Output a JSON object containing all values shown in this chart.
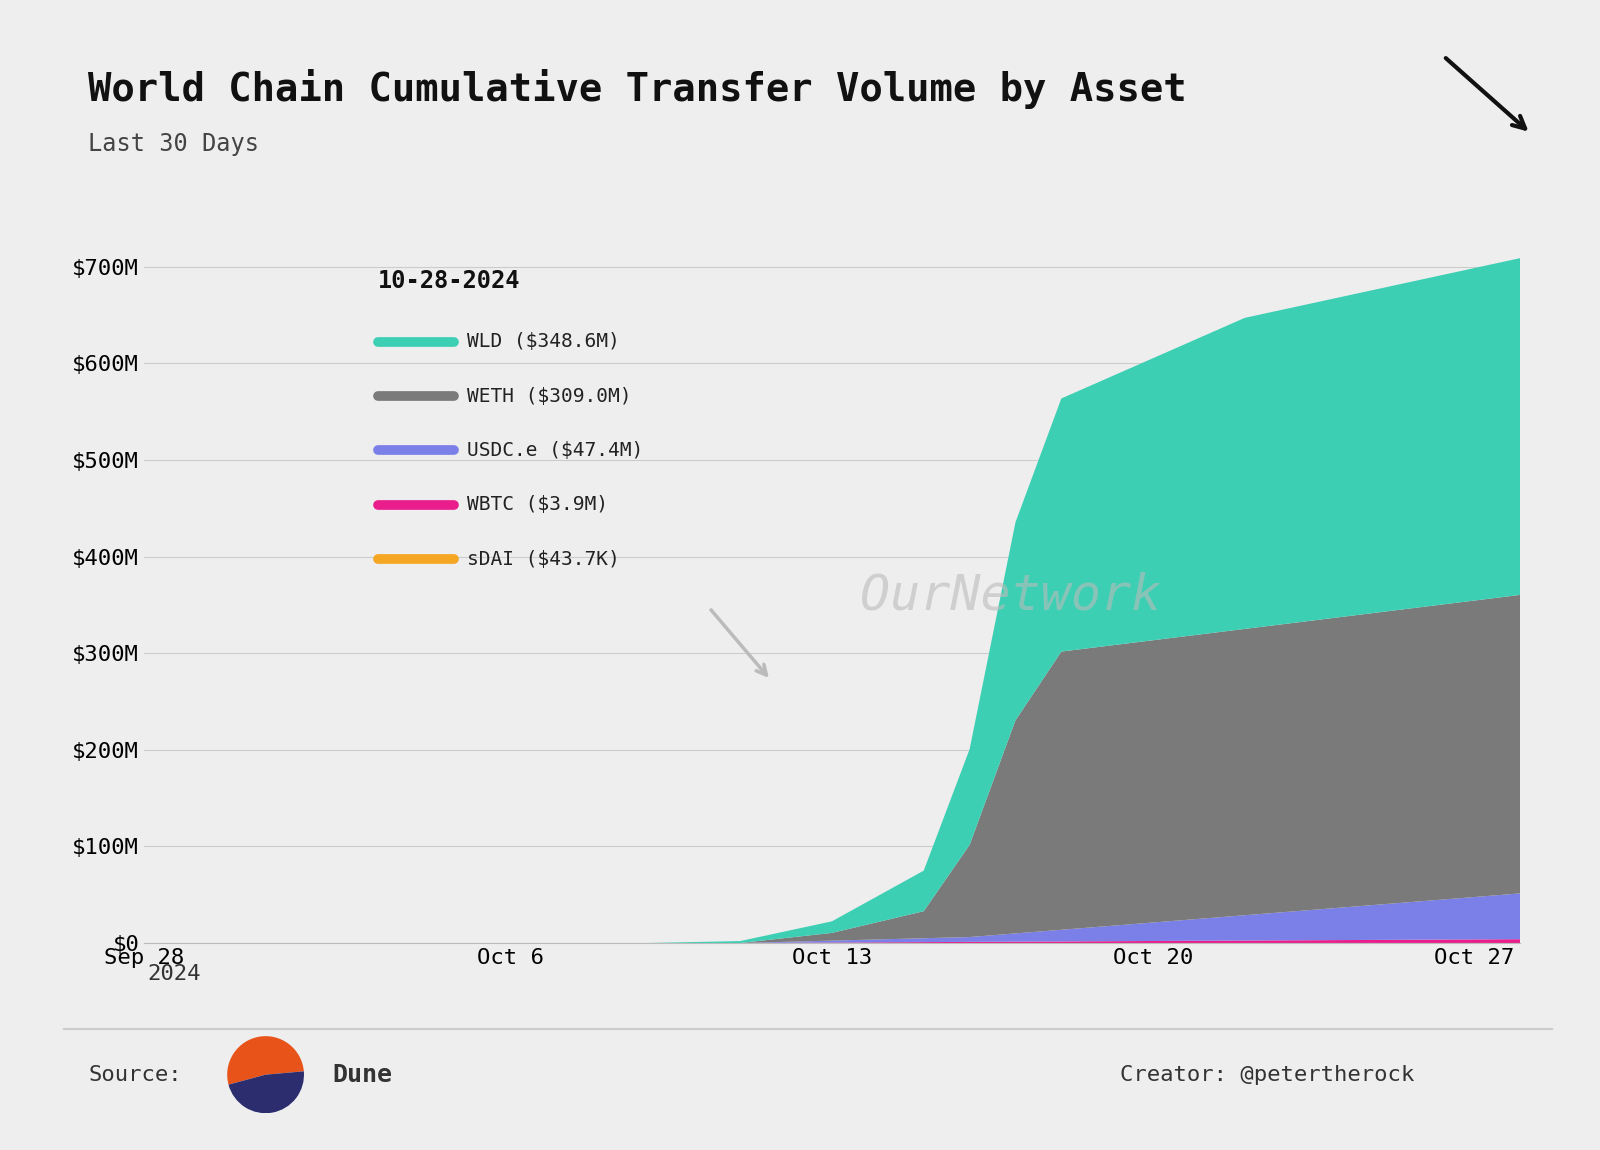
{
  "title": "World Chain Cumulative Transfer Volume by Asset",
  "subtitle": "Last 30 Days",
  "annotation": "10-28-2024",
  "background_color": "#eeeeee",
  "plot_bg_color": "#eeeeee",
  "series_order": [
    "sDAI",
    "WBTC",
    "USDC.e",
    "WETH",
    "WLD"
  ],
  "series": {
    "sDAI": {
      "color": "#f5a623",
      "final_value": 43700
    },
    "WBTC": {
      "color": "#e91e8c",
      "final_value": 3900000
    },
    "USDC.e": {
      "color": "#7b7fe8",
      "final_value": 47400000
    },
    "WETH": {
      "color": "#7a7a7a",
      "final_value": 309000000
    },
    "WLD": {
      "color": "#3dcfb4",
      "final_value": 348600000
    }
  },
  "legend_entries": [
    {
      "label": "WLD ($348.6M)",
      "color": "#3dcfb4"
    },
    {
      "label": "WETH ($309.0M)",
      "color": "#7a7a7a"
    },
    {
      "label": "USDC.e ($47.4M)",
      "color": "#7b7fe8"
    },
    {
      "label": "WBTC ($3.9M)",
      "color": "#e91e8c"
    },
    {
      "label": "sDAI ($43.7K)",
      "color": "#f5a623"
    }
  ],
  "x_tick_labels": [
    "Sep 28",
    "Oct 6",
    "Oct 13",
    "Oct 20",
    "Oct 27"
  ],
  "x_tick_positions": [
    0,
    8,
    15,
    22,
    29
  ],
  "y_ticks": [
    0,
    100000000,
    200000000,
    300000000,
    400000000,
    500000000,
    600000000,
    700000000
  ],
  "y_tick_labels": [
    "$0",
    "$100M",
    "$200M",
    "$300M",
    "$400M",
    "$500M",
    "$600M",
    "$700M"
  ],
  "ylim": [
    0,
    750000000
  ],
  "source_text": "Source:",
  "creator_text": "Creator: @petertherock",
  "dune_text": "Dune",
  "watermark": "OurNetwork"
}
